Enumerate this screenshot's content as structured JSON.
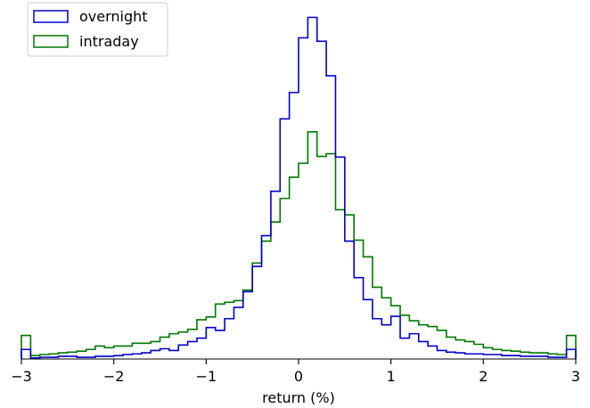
{
  "chart_data": {
    "type": "histogram-step",
    "xlabel": "return (%)",
    "ylabel": "",
    "xlim": [
      -3,
      3
    ],
    "ylim": [
      0,
      1.03
    ],
    "x_ticks": [
      -3,
      -2,
      -1,
      0,
      1,
      2,
      3
    ],
    "x_tick_labels": [
      "−3",
      "−2",
      "−1",
      "0",
      "1",
      "2",
      "3"
    ],
    "y_axis_visible": false,
    "grid": false,
    "legend_position": "top-left",
    "bin_edges": [
      -3.0,
      -2.9,
      -2.8,
      -2.7,
      -2.6,
      -2.5,
      -2.4,
      -2.3,
      -2.2,
      -2.1,
      -2.0,
      -1.9,
      -1.8,
      -1.7,
      -1.6,
      -1.5,
      -1.4,
      -1.3,
      -1.2,
      -1.1,
      -1.0,
      -0.9,
      -0.8,
      -0.7,
      -0.6,
      -0.5,
      -0.4,
      -0.3,
      -0.2,
      -0.1,
      0.0,
      0.1,
      0.2,
      0.3,
      0.4,
      0.5,
      0.6,
      0.7,
      0.8,
      0.9,
      1.0,
      1.1,
      1.2,
      1.3,
      1.4,
      1.5,
      1.6,
      1.7,
      1.8,
      1.9,
      2.0,
      2.1,
      2.2,
      2.3,
      2.4,
      2.5,
      2.6,
      2.7,
      2.8,
      2.9,
      3.0
    ],
    "series": [
      {
        "name": "overnight",
        "color": "#0000cc",
        "values": [
          0.028,
          0.003,
          0.005,
          0.005,
          0.008,
          0.008,
          0.005,
          0.005,
          0.008,
          0.008,
          0.01,
          0.013,
          0.015,
          0.018,
          0.025,
          0.03,
          0.025,
          0.041,
          0.051,
          0.061,
          0.092,
          0.084,
          0.118,
          0.151,
          0.197,
          0.271,
          0.361,
          0.491,
          0.703,
          0.78,
          0.94,
          1.0,
          0.93,
          0.829,
          0.591,
          0.345,
          0.238,
          0.174,
          0.118,
          0.1,
          0.125,
          0.061,
          0.074,
          0.051,
          0.038,
          0.025,
          0.02,
          0.018,
          0.015,
          0.015,
          0.013,
          0.013,
          0.01,
          0.01,
          0.008,
          0.008,
          0.008,
          0.005,
          0.005,
          0.028
        ]
      },
      {
        "name": "intraday",
        "color": "#007700",
        "values": [
          0.069,
          0.01,
          0.013,
          0.015,
          0.018,
          0.02,
          0.023,
          0.028,
          0.038,
          0.033,
          0.038,
          0.038,
          0.046,
          0.046,
          0.051,
          0.064,
          0.074,
          0.079,
          0.087,
          0.115,
          0.123,
          0.161,
          0.166,
          0.171,
          0.202,
          0.281,
          0.345,
          0.401,
          0.47,
          0.532,
          0.573,
          0.665,
          0.593,
          0.601,
          0.437,
          0.422,
          0.348,
          0.299,
          0.21,
          0.179,
          0.156,
          0.128,
          0.112,
          0.1,
          0.095,
          0.084,
          0.064,
          0.056,
          0.051,
          0.043,
          0.033,
          0.028,
          0.025,
          0.023,
          0.02,
          0.018,
          0.018,
          0.015,
          0.013,
          0.069
        ]
      }
    ]
  }
}
